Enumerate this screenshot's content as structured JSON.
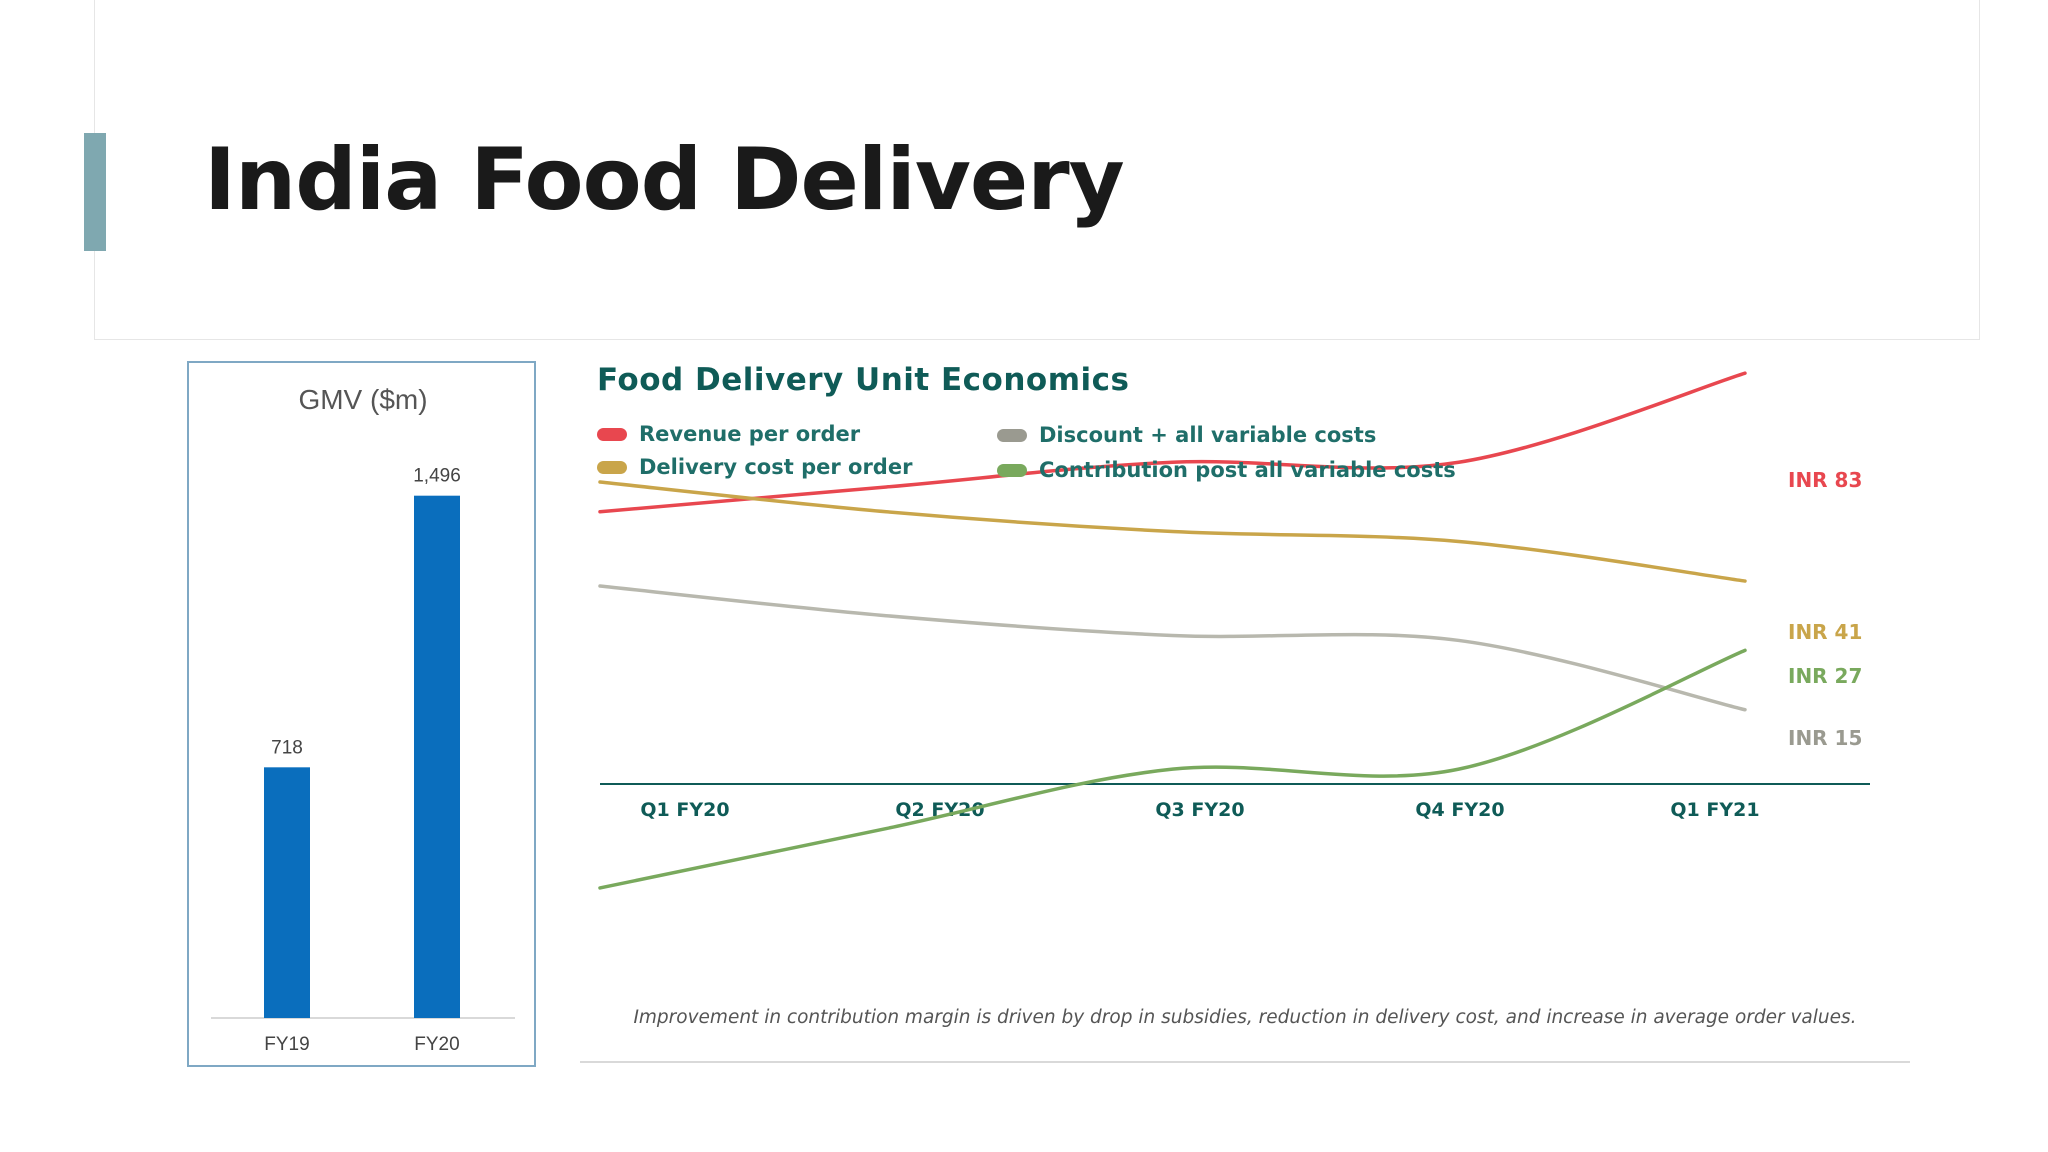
{
  "slide": {
    "title": "India Food Delivery"
  },
  "colors": {
    "accent": "#7fa8b0",
    "bar": "#0a6ebd",
    "axis": "#0f5b57"
  },
  "gmv_chart": {
    "title": "GMV ($m)",
    "categories": [
      "FY19",
      "FY20"
    ],
    "value_labels": [
      "718",
      "1,496"
    ]
  },
  "unit_economics": {
    "title": "Food Delivery Unit Economics",
    "caption": "Improvement in contribution margin is driven by drop in subsidies, reduction in delivery cost, and increase in average order values.",
    "categories": [
      "Q1 FY20",
      "Q2 FY20",
      "Q3 FY20",
      "Q4 FY20",
      "Q1 FY21"
    ],
    "legend": [
      {
        "label": "Revenue per order",
        "color": "#e8474f"
      },
      {
        "label": "Delivery cost per order",
        "color": "#c9a54a"
      },
      {
        "label": "Discount + all variable costs",
        "color": "#9a9a90"
      },
      {
        "label": "Contribution post all variable costs",
        "color": "#79a95d"
      }
    ],
    "end_labels": [
      "INR 83",
      "INR 41",
      "INR 27",
      "INR 15"
    ]
  },
  "chart_data": [
    {
      "type": "bar",
      "title": "GMV ($m)",
      "categories": [
        "FY19",
        "FY20"
      ],
      "values": [
        718,
        1496
      ],
      "ylim": [
        0,
        1600
      ],
      "grid": false
    },
    {
      "type": "line",
      "title": "Food Delivery Unit Economics",
      "x": [
        "Q1 FY20",
        "Q2 FY20",
        "Q3 FY20",
        "Q4 FY20",
        "Q1 FY21"
      ],
      "ylim": [
        -30,
        110
      ],
      "legend": "top-left",
      "grid": false,
      "series": [
        {
          "name": "Revenue per order",
          "color": "#e8474f",
          "values": [
            55,
            60,
            65,
            65,
            83
          ]
        },
        {
          "name": "Delivery cost per order",
          "color": "#c9a54a",
          "values": [
            61,
            55,
            51,
            49,
            41
          ]
        },
        {
          "name": "Discount + all variable costs",
          "color": "#b8b8ae",
          "values": [
            40,
            34,
            30,
            29,
            15
          ]
        },
        {
          "name": "Contribution post all variable costs",
          "color": "#79a95d",
          "values": [
            -21,
            -9,
            3,
            3,
            27
          ]
        }
      ]
    }
  ]
}
